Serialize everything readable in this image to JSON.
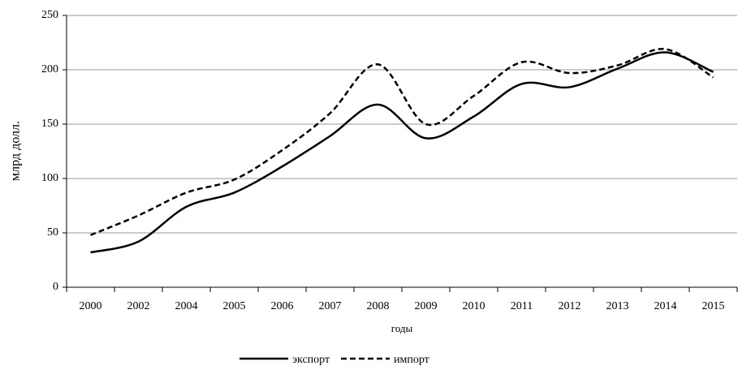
{
  "chart_data": {
    "type": "line",
    "y_label": "млрд  долл.",
    "x_label": "годы",
    "categories": [
      "2000",
      "2002",
      "2004",
      "2005",
      "2006",
      "2007",
      "2008",
      "2009",
      "2010",
      "2011",
      "2012",
      "2013",
      "2014",
      "2015"
    ],
    "series": [
      {
        "name": "экспорт",
        "color": "#000000",
        "dash": false,
        "values": [
          32,
          42,
          74,
          87,
          111,
          139,
          168,
          137,
          157,
          187,
          184,
          201,
          216,
          198
        ]
      },
      {
        "name": "импорт",
        "color": "#000000",
        "dash": true,
        "values": [
          48,
          66,
          87,
          99,
          126,
          160,
          205,
          150,
          176,
          207,
          197,
          204,
          219,
          193
        ]
      }
    ],
    "ylim": [
      0,
      250
    ],
    "yticks": [
      0,
      50,
      100,
      150,
      200,
      250
    ],
    "grid": true,
    "legend": "bottom"
  }
}
